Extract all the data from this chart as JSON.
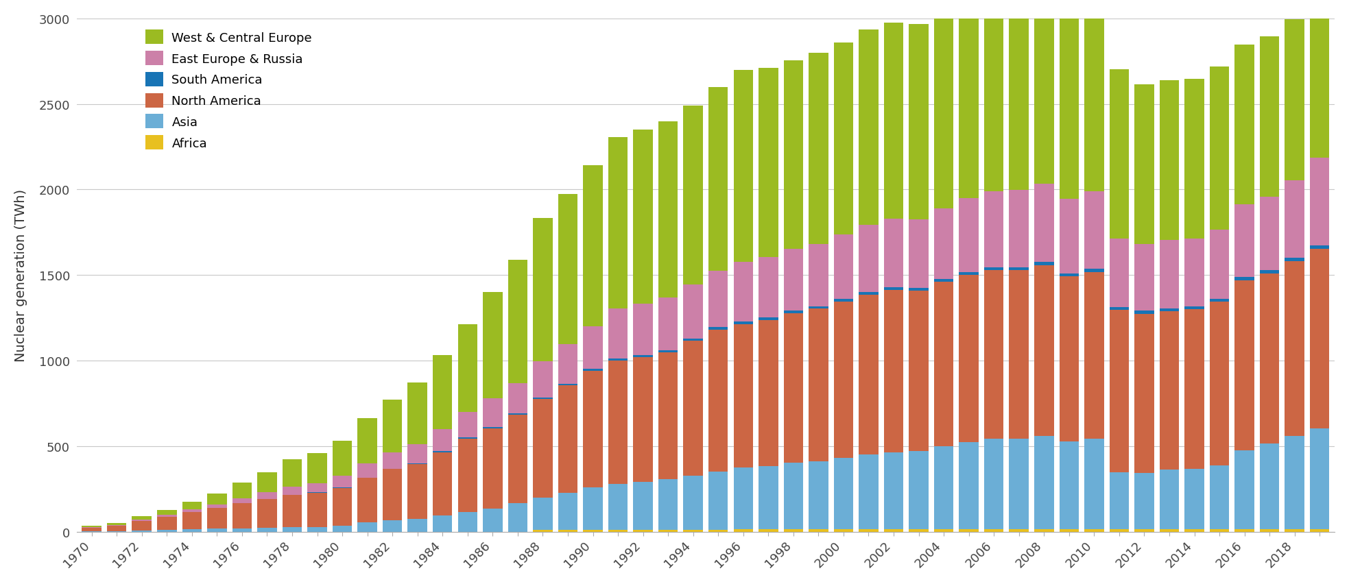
{
  "years": [
    1970,
    1971,
    1972,
    1973,
    1974,
    1975,
    1976,
    1977,
    1978,
    1979,
    1980,
    1981,
    1982,
    1983,
    1984,
    1985,
    1986,
    1987,
    1988,
    1989,
    1990,
    1991,
    1992,
    1993,
    1994,
    1995,
    1996,
    1997,
    1998,
    1999,
    2000,
    2001,
    2002,
    2003,
    2004,
    2005,
    2006,
    2007,
    2008,
    2009,
    2010,
    2011,
    2012,
    2013,
    2014,
    2015,
    2016,
    2017,
    2018,
    2019
  ],
  "Africa": [
    0,
    0,
    0,
    0,
    0,
    0,
    0,
    0,
    0,
    0,
    0,
    0,
    0,
    0,
    0,
    0,
    0,
    0,
    10,
    10,
    10,
    10,
    10,
    10,
    12,
    12,
    13,
    13,
    13,
    13,
    13,
    13,
    13,
    13,
    14,
    14,
    14,
    14,
    13,
    13,
    13,
    13,
    14,
    14,
    15,
    15,
    15,
    14,
    15,
    15
  ],
  "Asia": [
    2,
    3,
    6,
    9,
    14,
    18,
    18,
    22,
    25,
    28,
    35,
    53,
    65,
    75,
    95,
    115,
    135,
    165,
    190,
    215,
    250,
    270,
    280,
    295,
    315,
    340,
    360,
    370,
    390,
    400,
    420,
    440,
    450,
    460,
    485,
    510,
    530,
    530,
    545,
    515,
    530,
    335,
    330,
    350,
    350,
    370,
    460,
    500,
    545,
    590
  ],
  "North_America": [
    22,
    30,
    55,
    77,
    100,
    120,
    148,
    170,
    190,
    200,
    220,
    260,
    300,
    320,
    370,
    430,
    470,
    520,
    575,
    630,
    680,
    720,
    730,
    745,
    790,
    830,
    840,
    855,
    875,
    890,
    910,
    930,
    950,
    935,
    960,
    975,
    985,
    985,
    1000,
    965,
    975,
    950,
    930,
    925,
    935,
    960,
    995,
    995,
    1020,
    1050
  ],
  "South_America": [
    0,
    0,
    0,
    0,
    0,
    0,
    0,
    0,
    0,
    1,
    2,
    2,
    2,
    5,
    6,
    6,
    6,
    8,
    9,
    10,
    10,
    11,
    11,
    12,
    13,
    13,
    14,
    14,
    15,
    15,
    16,
    16,
    16,
    16,
    16,
    16,
    17,
    17,
    17,
    17,
    17,
    16,
    17,
    16,
    17,
    17,
    17,
    18,
    19,
    20
  ],
  "East_Europe_Russia": [
    4,
    5,
    8,
    11,
    16,
    22,
    30,
    38,
    48,
    55,
    68,
    82,
    95,
    110,
    130,
    150,
    170,
    175,
    210,
    230,
    250,
    295,
    300,
    305,
    315,
    330,
    350,
    355,
    360,
    365,
    380,
    395,
    400,
    400,
    415,
    435,
    445,
    450,
    460,
    435,
    455,
    400,
    390,
    400,
    395,
    405,
    425,
    430,
    455,
    510
  ],
  "West_Central_Europe": [
    8,
    13,
    22,
    30,
    45,
    62,
    90,
    118,
    160,
    175,
    205,
    265,
    310,
    360,
    430,
    510,
    620,
    720,
    840,
    880,
    940,
    1000,
    1020,
    1030,
    1045,
    1075,
    1120,
    1105,
    1100,
    1115,
    1120,
    1140,
    1145,
    1145,
    1145,
    1160,
    1160,
    1115,
    1100,
    1060,
    1055,
    990,
    935,
    935,
    935,
    950,
    935,
    940,
    940,
    955
  ],
  "colors": {
    "Africa": "#E8C020",
    "Asia": "#6BAED6",
    "North_America": "#CC6644",
    "South_America": "#1874B5",
    "East_Europe_Russia": "#CC80A8",
    "West_Central_Europe": "#9BBB22"
  },
  "ylabel": "Nuclear generation (TWh)",
  "ylim": [
    0,
    3000
  ],
  "yticks": [
    0,
    500,
    1000,
    1500,
    2000,
    2500,
    3000
  ],
  "legend_labels": {
    "West_Central_Europe": "West & Central Europe",
    "East_Europe_Russia": "East Europe & Russia",
    "South_America": "South America",
    "North_America": "North America",
    "Asia": "Asia",
    "Africa": "Africa"
  },
  "background_color": "#ffffff",
  "grid_color": "#c8c8c8"
}
